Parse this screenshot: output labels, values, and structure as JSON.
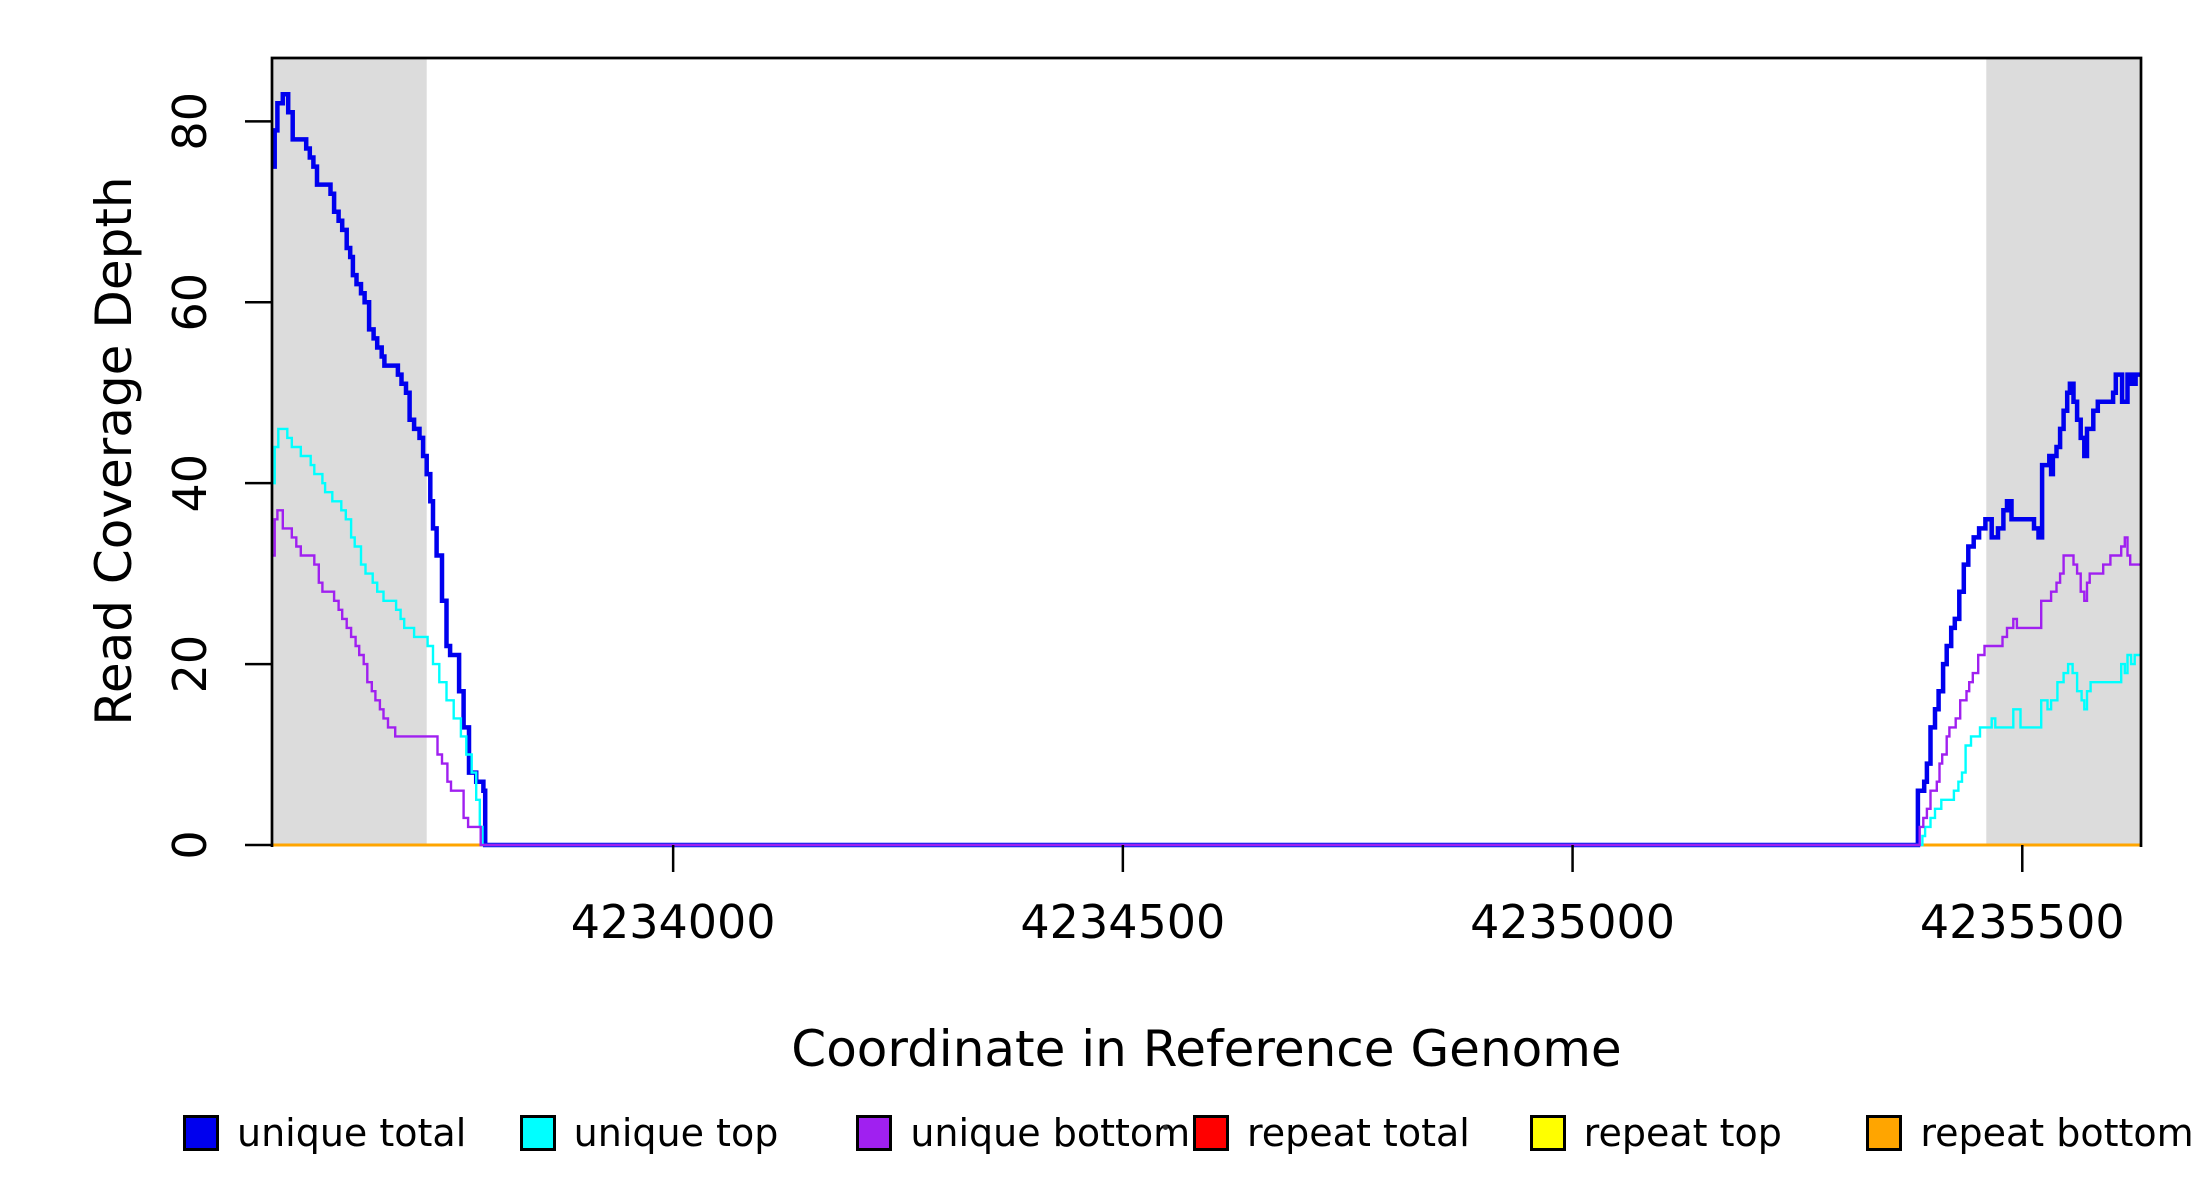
{
  "figure": {
    "background": "#FFFFFF"
  },
  "chart_data": {
    "type": "line",
    "subtype": "step",
    "title": "",
    "xlabel": "Coordinate in Reference Genome",
    "ylabel": "Read Coverage Depth",
    "xlim": [
      4233554,
      4235632
    ],
    "ylim": [
      0,
      87
    ],
    "x_ticks": [
      4234000,
      4234500,
      4235000,
      4235500
    ],
    "y_ticks": [
      0,
      20,
      40,
      60,
      80
    ],
    "grid": false,
    "legend_position": "bottom",
    "axis_color": "#000000",
    "shaded_regions": [
      {
        "name": "repeat-region-left",
        "x0": 4233554,
        "x1": 4233726,
        "color": "#DCDCDC"
      },
      {
        "name": "repeat-region-right",
        "x0": 4235460,
        "x1": 4235632,
        "color": "#DCDCDC"
      }
    ],
    "legend": [
      {
        "label": "unique total",
        "color": "#0000EE"
      },
      {
        "label": "unique top",
        "color": "#00FFFF"
      },
      {
        "label": "unique bottom",
        "color": "#A020F0"
      },
      {
        "label": "repeat total",
        "color": "#FF0000"
      },
      {
        "label": "repeat top",
        "color": "#FFFF00"
      },
      {
        "label": "repeat bottom",
        "color": "#FFA500"
      }
    ],
    "series": [
      {
        "name": "repeat total",
        "color": "#FF0000",
        "width": 2.4,
        "points": [
          [
            4233554,
            0
          ],
          [
            4235632,
            0
          ]
        ]
      },
      {
        "name": "repeat top",
        "color": "#FFFF00",
        "width": 2.4,
        "points": [
          [
            4233554,
            0
          ],
          [
            4235632,
            0
          ]
        ]
      },
      {
        "name": "repeat bottom",
        "color": "#FFA500",
        "width": 3,
        "points": [
          [
            4233554,
            0
          ],
          [
            4235632,
            0
          ]
        ]
      },
      {
        "name": "unique total",
        "color": "#0000EE",
        "width": 4.5,
        "points": [
          [
            4233554,
            75
          ],
          [
            4233557,
            79
          ],
          [
            4233560,
            82
          ],
          [
            4233566,
            83
          ],
          [
            4233572,
            81
          ],
          [
            4233577,
            78
          ],
          [
            4233592,
            77
          ],
          [
            4233596,
            76
          ],
          [
            4233600,
            75
          ],
          [
            4233604,
            73
          ],
          [
            4233619,
            72
          ],
          [
            4233623,
            70
          ],
          [
            4233628,
            69
          ],
          [
            4233632,
            68
          ],
          [
            4233637,
            66
          ],
          [
            4233641,
            65
          ],
          [
            4233644,
            63
          ],
          [
            4233648,
            62
          ],
          [
            4233653,
            61
          ],
          [
            4233657,
            60
          ],
          [
            4233662,
            57
          ],
          [
            4233667,
            56
          ],
          [
            4233671,
            55
          ],
          [
            4233676,
            54
          ],
          [
            4233679,
            53
          ],
          [
            4233694,
            52
          ],
          [
            4233698,
            51
          ],
          [
            4233703,
            50
          ],
          [
            4233707,
            47
          ],
          [
            4233712,
            46
          ],
          [
            4233718,
            45
          ],
          [
            4233722,
            43
          ],
          [
            4233726,
            41
          ],
          [
            4233730,
            38
          ],
          [
            4233733,
            35
          ],
          [
            4233737,
            32
          ],
          [
            4233743,
            27
          ],
          [
            4233748,
            22
          ],
          [
            4233752,
            21
          ],
          [
            4233762,
            17
          ],
          [
            4233767,
            13
          ],
          [
            4233773,
            8
          ],
          [
            4233781,
            7
          ],
          [
            4233789,
            6
          ],
          [
            4233791,
            0
          ],
          [
            4235384,
            6
          ],
          [
            4235391,
            7
          ],
          [
            4235394,
            9
          ],
          [
            4235398,
            13
          ],
          [
            4235403,
            15
          ],
          [
            4235407,
            17
          ],
          [
            4235412,
            20
          ],
          [
            4235416,
            22
          ],
          [
            4235421,
            24
          ],
          [
            4235425,
            25
          ],
          [
            4235430,
            28
          ],
          [
            4235435,
            31
          ],
          [
            4235440,
            33
          ],
          [
            4235446,
            34
          ],
          [
            4235452,
            35
          ],
          [
            4235459,
            36
          ],
          [
            4235466,
            34
          ],
          [
            4235473,
            35
          ],
          [
            4235479,
            37
          ],
          [
            4235483,
            38
          ],
          [
            4235488,
            36
          ],
          [
            4235513,
            35
          ],
          [
            4235518,
            34
          ],
          [
            4235522,
            42
          ],
          [
            4235530,
            43
          ],
          [
            4235532,
            41
          ],
          [
            4235534,
            43
          ],
          [
            4235538,
            44
          ],
          [
            4235542,
            46
          ],
          [
            4235546,
            48
          ],
          [
            4235550,
            50
          ],
          [
            4235553,
            51
          ],
          [
            4235557,
            49
          ],
          [
            4235561,
            47
          ],
          [
            4235565,
            45
          ],
          [
            4235569,
            43
          ],
          [
            4235572,
            46
          ],
          [
            4235579,
            48
          ],
          [
            4235584,
            49
          ],
          [
            4235597,
            49
          ],
          [
            4235601,
            50
          ],
          [
            4235604,
            52
          ],
          [
            4235611,
            49
          ],
          [
            4235617,
            52
          ],
          [
            4235622,
            51
          ],
          [
            4235626,
            52
          ],
          [
            4235632,
            52
          ]
        ]
      },
      {
        "name": "unique top",
        "color": "#00FFFF",
        "width": 2.4,
        "points": [
          [
            4233554,
            40
          ],
          [
            4233557,
            44
          ],
          [
            4233561,
            46
          ],
          [
            4233571,
            45
          ],
          [
            4233576,
            44
          ],
          [
            4233586,
            43
          ],
          [
            4233597,
            42
          ],
          [
            4233601,
            41
          ],
          [
            4233610,
            40
          ],
          [
            4233613,
            39
          ],
          [
            4233621,
            38
          ],
          [
            4233631,
            37
          ],
          [
            4233636,
            36
          ],
          [
            4233642,
            34
          ],
          [
            4233646,
            33
          ],
          [
            4233653,
            31
          ],
          [
            4233658,
            30
          ],
          [
            4233666,
            29
          ],
          [
            4233671,
            28
          ],
          [
            4233678,
            27
          ],
          [
            4233692,
            26
          ],
          [
            4233697,
            25
          ],
          [
            4233701,
            24
          ],
          [
            4233712,
            23
          ],
          [
            4233727,
            22
          ],
          [
            4233733,
            20
          ],
          [
            4233740,
            18
          ],
          [
            4233748,
            16
          ],
          [
            4233756,
            14
          ],
          [
            4233764,
            12
          ],
          [
            4233770,
            10
          ],
          [
            4233776,
            8
          ],
          [
            4233781,
            5
          ],
          [
            4233785,
            2
          ],
          [
            4233788,
            0
          ],
          [
            4235389,
            1
          ],
          [
            4235392,
            2
          ],
          [
            4235398,
            3
          ],
          [
            4235403,
            4
          ],
          [
            4235410,
            5
          ],
          [
            4235424,
            6
          ],
          [
            4235429,
            7
          ],
          [
            4235433,
            8
          ],
          [
            4235437,
            11
          ],
          [
            4235443,
            12
          ],
          [
            4235453,
            13
          ],
          [
            4235466,
            14
          ],
          [
            4235470,
            13
          ],
          [
            4235490,
            15
          ],
          [
            4235498,
            13
          ],
          [
            4235521,
            16
          ],
          [
            4235528,
            15
          ],
          [
            4235532,
            16
          ],
          [
            4235539,
            18
          ],
          [
            4235546,
            19
          ],
          [
            4235551,
            20
          ],
          [
            4235556,
            19
          ],
          [
            4235561,
            17
          ],
          [
            4235566,
            16
          ],
          [
            4235569,
            15
          ],
          [
            4235572,
            17
          ],
          [
            4235576,
            18
          ],
          [
            4235606,
            18
          ],
          [
            4235610,
            20
          ],
          [
            4235614,
            19
          ],
          [
            4235617,
            21
          ],
          [
            4235621,
            20
          ],
          [
            4235625,
            21
          ],
          [
            4235632,
            21
          ]
        ]
      },
      {
        "name": "unique bottom",
        "color": "#A020F0",
        "width": 2.4,
        "points": [
          [
            4233554,
            32
          ],
          [
            4233557,
            36
          ],
          [
            4233560,
            37
          ],
          [
            4233566,
            35
          ],
          [
            4233576,
            34
          ],
          [
            4233581,
            33
          ],
          [
            4233586,
            32
          ],
          [
            4233601,
            31
          ],
          [
            4233606,
            29
          ],
          [
            4233610,
            28
          ],
          [
            4233623,
            27
          ],
          [
            4233628,
            26
          ],
          [
            4233632,
            25
          ],
          [
            4233637,
            24
          ],
          [
            4233642,
            23
          ],
          [
            4233647,
            22
          ],
          [
            4233651,
            21
          ],
          [
            4233656,
            20
          ],
          [
            4233660,
            18
          ],
          [
            4233665,
            17
          ],
          [
            4233669,
            16
          ],
          [
            4233674,
            15
          ],
          [
            4233678,
            14
          ],
          [
            4233683,
            13
          ],
          [
            4233691,
            12
          ],
          [
            4233738,
            10
          ],
          [
            4233743,
            9
          ],
          [
            4233749,
            7
          ],
          [
            4233753,
            6
          ],
          [
            4233767,
            3
          ],
          [
            4233772,
            2
          ],
          [
            4233786,
            0
          ],
          [
            4235386,
            2
          ],
          [
            4235390,
            3
          ],
          [
            4235394,
            4
          ],
          [
            4235398,
            6
          ],
          [
            4235405,
            7
          ],
          [
            4235408,
            9
          ],
          [
            4235411,
            10
          ],
          [
            4235416,
            12
          ],
          [
            4235419,
            13
          ],
          [
            4235426,
            14
          ],
          [
            4235431,
            16
          ],
          [
            4235438,
            17
          ],
          [
            4235441,
            18
          ],
          [
            4235445,
            19
          ],
          [
            4235451,
            21
          ],
          [
            4235458,
            22
          ],
          [
            4235478,
            23
          ],
          [
            4235483,
            24
          ],
          [
            4235490,
            25
          ],
          [
            4235494,
            24
          ],
          [
            4235513,
            24
          ],
          [
            4235521,
            27
          ],
          [
            4235532,
            28
          ],
          [
            4235538,
            29
          ],
          [
            4235542,
            30
          ],
          [
            4235546,
            32
          ],
          [
            4235557,
            31
          ],
          [
            4235561,
            30
          ],
          [
            4235565,
            28
          ],
          [
            4235569,
            27
          ],
          [
            4235572,
            29
          ],
          [
            4235575,
            30
          ],
          [
            4235590,
            31
          ],
          [
            4235598,
            32
          ],
          [
            4235610,
            33
          ],
          [
            4235614,
            34
          ],
          [
            4235617,
            32
          ],
          [
            4235620,
            31
          ],
          [
            4235632,
            31
          ]
        ]
      }
    ]
  }
}
